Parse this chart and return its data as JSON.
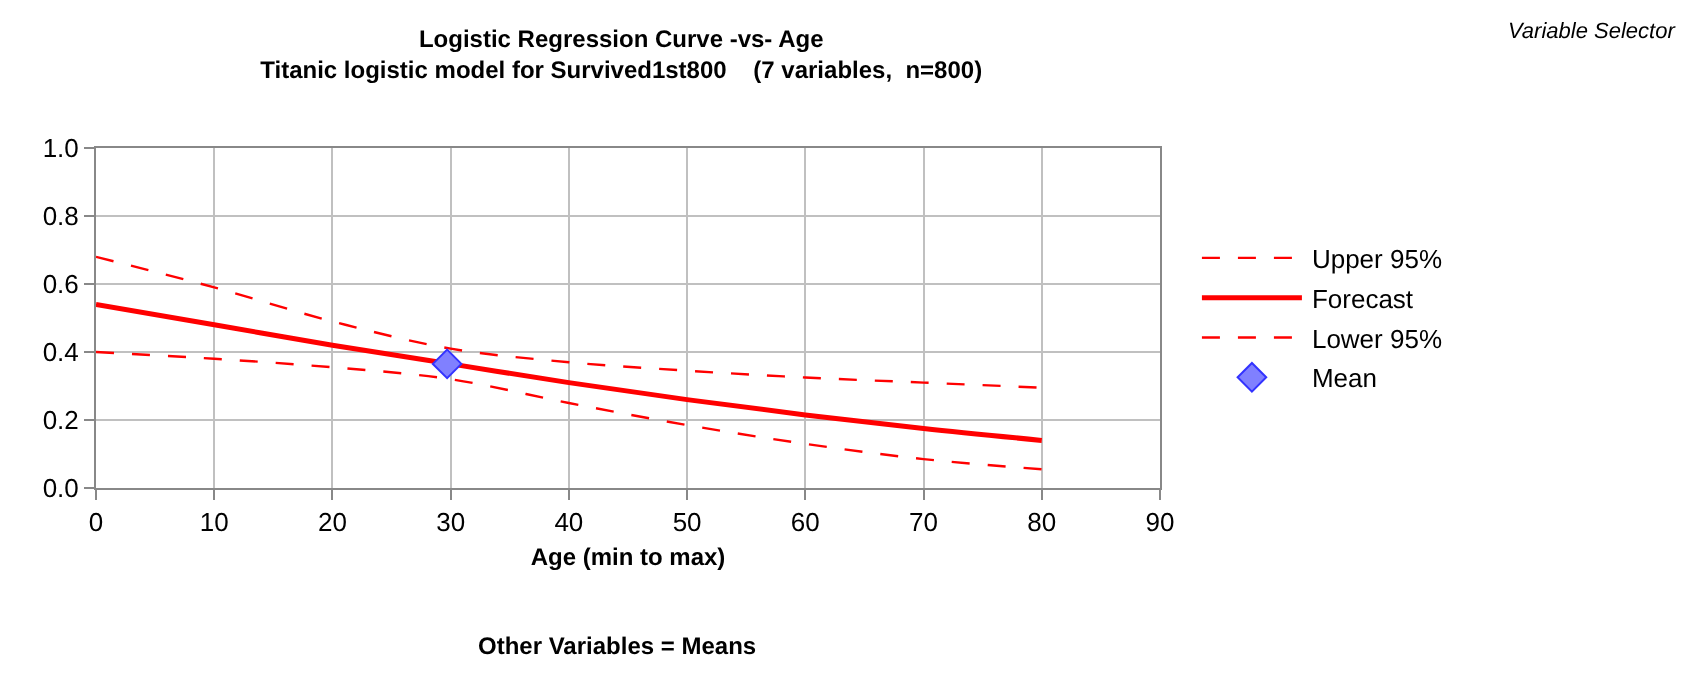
{
  "chart_data": {
    "type": "line",
    "title": "Logistic Regression Curve -vs- Age",
    "subtitle": "Titanic logistic model for Survived1st800    (7 variables,  n=800)",
    "xlabel": "Age (min to max)",
    "annotations": [
      "Other Variables = Means",
      "Variable Selector"
    ],
    "x": [
      0,
      10,
      20,
      30,
      40,
      50,
      60,
      70,
      80
    ],
    "series": [
      {
        "name": "Upper 95%",
        "color": "#ff0000",
        "line_style": "dashed",
        "values": [
          0.68,
          0.59,
          0.49,
          0.41,
          0.37,
          0.345,
          0.325,
          0.31,
          0.295
        ]
      },
      {
        "name": "Forecast",
        "color": "#ff0000",
        "line_style": "solid",
        "values": [
          0.54,
          0.48,
          0.42,
          0.365,
          0.31,
          0.26,
          0.215,
          0.175,
          0.14
        ]
      },
      {
        "name": "Lower 95%",
        "color": "#ff0000",
        "line_style": "dashed",
        "values": [
          0.4,
          0.38,
          0.355,
          0.32,
          0.25,
          0.185,
          0.13,
          0.085,
          0.055
        ]
      },
      {
        "name": "Mean",
        "type": "scatter",
        "marker": "diamond",
        "color": "#8080ff",
        "x": [
          29.7
        ],
        "values": [
          0.365
        ]
      }
    ],
    "xlim": [
      0,
      90
    ],
    "xticks": [
      0,
      10,
      20,
      30,
      40,
      50,
      60,
      70,
      80,
      90
    ],
    "ylim": [
      0,
      1
    ],
    "yticks": [
      {
        "value": 0,
        "label": "0.0"
      },
      {
        "value": 0.2,
        "label": "0.2"
      },
      {
        "value": 0.4,
        "label": "0.4"
      },
      {
        "value": 0.6,
        "label": "0.6"
      },
      {
        "value": 0.8,
        "label": "0.8"
      },
      {
        "value": 1,
        "label": "1.0"
      }
    ],
    "grid": true,
    "legend": "right",
    "marker": "none"
  }
}
